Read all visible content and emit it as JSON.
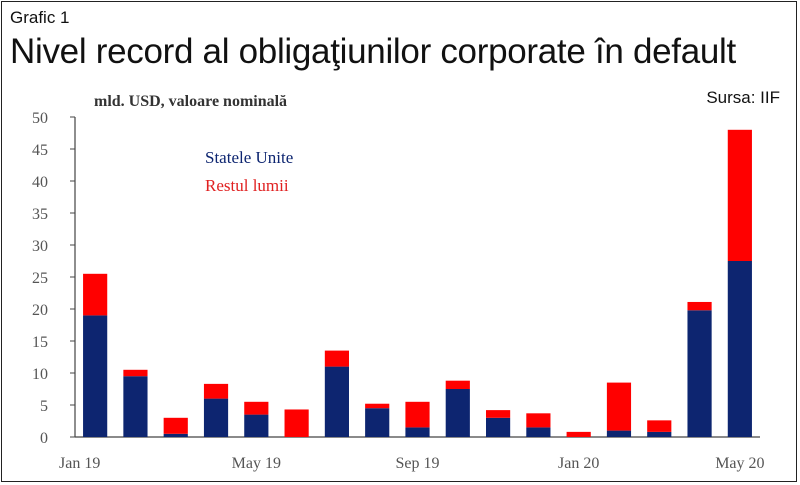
{
  "header": {
    "grafic": "Grafic 1",
    "title": "Nivel record al obligaţiunilor corporate în default",
    "source": "Sursa: IIF"
  },
  "colors": {
    "us": "#0d2570",
    "rest": "#ff0000"
  },
  "chart_data": {
    "type": "bar",
    "stacked": true,
    "title": "Nivel record al obligaţiunilor corporate în default",
    "ylabel": "mld. USD, valoare nominală",
    "ylim": [
      0,
      50
    ],
    "yticks": [
      0,
      5,
      10,
      15,
      20,
      25,
      30,
      35,
      40,
      45,
      50
    ],
    "categories": [
      "Jan 19",
      "Feb 19",
      "Mar 19",
      "Apr 19",
      "May 19",
      "Jun 19",
      "Jul 19",
      "Aug 19",
      "Sep 19",
      "Oct 19",
      "Nov 19",
      "Dec 19",
      "Jan 20",
      "Feb 20",
      "Mar 20",
      "Apr 20",
      "May 20"
    ],
    "xtick_labels": [
      {
        "category": "Jan 19",
        "label": "Jan 19"
      },
      {
        "category": "May 19",
        "label": "May 19"
      },
      {
        "category": "Sep 19",
        "label": "Sep 19"
      },
      {
        "category": "Jan 20",
        "label": "Jan 20"
      },
      {
        "category": "May 20",
        "label": "May 20"
      }
    ],
    "series": [
      {
        "name": "Statele Unite",
        "values": [
          19,
          9.5,
          0.5,
          6,
          3.5,
          0,
          11,
          4.5,
          1.5,
          7.5,
          3,
          1.5,
          0,
          1,
          0.8,
          19.8,
          27.5
        ]
      },
      {
        "name": "Restul lumii",
        "values": [
          6.5,
          1,
          2.5,
          2.3,
          2,
          4.3,
          2.5,
          0.7,
          4,
          1.3,
          1.2,
          2.2,
          0.8,
          7.5,
          1.8,
          1.3,
          20.5
        ]
      }
    ],
    "legend": "top-left",
    "grid": false
  }
}
